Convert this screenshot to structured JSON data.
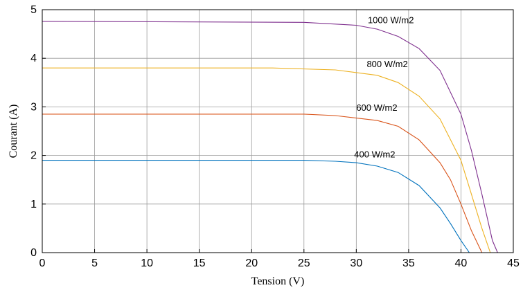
{
  "chart_data": {
    "type": "line",
    "title": "",
    "xlabel": "Tension (V)",
    "ylabel": "Courant (A)",
    "xlim": [
      0,
      45
    ],
    "ylim": [
      0,
      5
    ],
    "xticks": [
      0,
      5,
      10,
      15,
      20,
      25,
      30,
      35,
      40,
      45
    ],
    "yticks": [
      0,
      1,
      2,
      3,
      4,
      5
    ],
    "grid": true,
    "series": [
      {
        "name": "1000 W/m2",
        "color": "#7E2F8E",
        "x": [
          0,
          25,
          30,
          32,
          34,
          36,
          38,
          40,
          41,
          42,
          43,
          43.5
        ],
        "y": [
          4.76,
          4.74,
          4.68,
          4.6,
          4.45,
          4.2,
          3.75,
          2.85,
          2.1,
          1.2,
          0.25,
          0
        ]
      },
      {
        "name": "800 W/m2",
        "color": "#EDB120",
        "x": [
          0,
          22,
          28,
          32,
          34,
          36,
          38,
          40,
          41,
          42,
          42.8
        ],
        "y": [
          3.8,
          3.8,
          3.76,
          3.65,
          3.5,
          3.22,
          2.75,
          1.9,
          1.2,
          0.5,
          0
        ]
      },
      {
        "name": "600 W/m2",
        "color": "#D95319",
        "x": [
          0,
          25,
          28,
          32,
          34,
          36,
          38,
          39,
          40,
          41,
          42
        ],
        "y": [
          2.85,
          2.85,
          2.82,
          2.72,
          2.6,
          2.32,
          1.85,
          1.5,
          1.0,
          0.45,
          0
        ]
      },
      {
        "name": "400 W/m2",
        "color": "#0072BD",
        "x": [
          0,
          25,
          28,
          30,
          32,
          34,
          36,
          38,
          39,
          40,
          40.8
        ],
        "y": [
          1.9,
          1.9,
          1.88,
          1.85,
          1.78,
          1.65,
          1.38,
          0.92,
          0.6,
          0.25,
          0
        ]
      }
    ],
    "annotations": [
      {
        "text": "1000 W/m2",
        "x": 31.1,
        "y": 4.72
      },
      {
        "text": "800 W/m2",
        "x": 31.0,
        "y": 3.82
      },
      {
        "text": "600 W/m2",
        "x": 30.0,
        "y": 2.92
      },
      {
        "text": "400 W/m2",
        "x": 29.8,
        "y": 1.96
      }
    ]
  }
}
